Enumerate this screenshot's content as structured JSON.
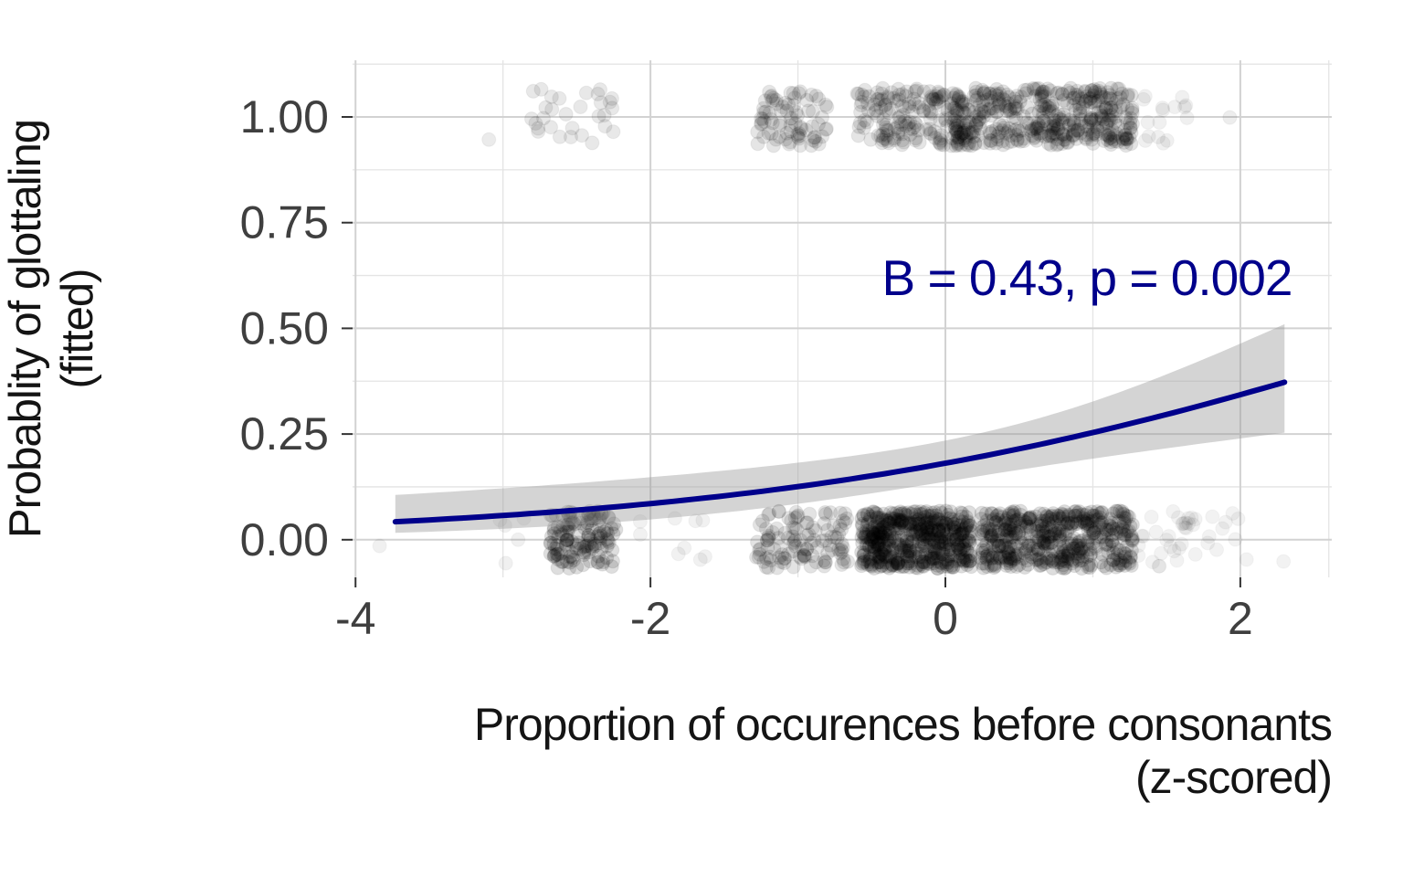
{
  "figure": {
    "background": "#ffffff"
  },
  "axes": {
    "y_title_line1": "Probablity of glottaling",
    "y_title_line2": "(fitted)",
    "x_title_line1": "Proportion of occurences before consonants",
    "x_title_line2": "(z-scored)"
  },
  "chart_data": {
    "type": "scatter",
    "title": "",
    "xlabel": "Proportion of occurences before consonants (z-scored)",
    "ylabel": "Probablity of glottaling (fitted)",
    "xlim": [
      -4.02,
      2.62
    ],
    "ylim": [
      -0.089,
      1.134
    ],
    "grid": {
      "on": true,
      "x_major": [
        -4,
        -2,
        0,
        2
      ],
      "x_minor": [
        -3,
        -1,
        1,
        2.6
      ],
      "y_major": [
        0,
        0.25,
        0.5,
        0.75,
        1.0
      ],
      "y_minor": [
        0.125,
        0.375,
        0.625,
        0.875,
        1.125
      ],
      "major_color": "#d2d2d2",
      "minor_color": "#e4e4e4"
    },
    "x_ticks": [
      {
        "value": -4,
        "label": "-4"
      },
      {
        "value": -2,
        "label": "-2"
      },
      {
        "value": 0,
        "label": "0"
      },
      {
        "value": 2,
        "label": "2"
      }
    ],
    "y_ticks": [
      {
        "value": 0.0,
        "label": "0.00"
      },
      {
        "value": 0.25,
        "label": "0.25"
      },
      {
        "value": 0.5,
        "label": "0.50"
      },
      {
        "value": 0.75,
        "label": "0.75"
      },
      {
        "value": 1.0,
        "label": "1.00"
      }
    ],
    "tick_color": "#333333",
    "tick_label_color": "#3f3f3f",
    "annotation": {
      "text": "B = 0.43, p = 0.002",
      "x": 0.96,
      "y": 0.62,
      "color": "#00008b"
    },
    "fit": {
      "model": "logistic",
      "B": 0.43,
      "p_value": 0.002,
      "intercept": -1.51,
      "slope": 0.43,
      "x_range": [
        -3.73,
        2.3
      ],
      "line_color": "#00008b",
      "line_width": 6,
      "ribbon_color": "#999999",
      "ribbon_opacity": 0.42,
      "ribbon_se": {
        "base": 0.32,
        "slope": 0.23,
        "x_center": 0.3
      }
    },
    "points": {
      "color": "#000000",
      "radius": 7.5,
      "jitter_height": 0.068,
      "clusters": [
        {
          "band": 1,
          "x_min": -3.11,
          "x_max": -3.07,
          "n": 1,
          "alpha": 0.08
        },
        {
          "band": 1,
          "x_min": -2.82,
          "x_max": -2.25,
          "n": 30,
          "alpha": 0.09
        },
        {
          "band": 1,
          "x_min": -1.28,
          "x_max": -0.8,
          "n": 80,
          "alpha": 0.1
        },
        {
          "band": 1,
          "x_min": -0.6,
          "x_max": 0.12,
          "n": 170,
          "alpha": 0.1
        },
        {
          "band": 1,
          "x_min": 0.05,
          "x_max": 1.27,
          "n": 430,
          "alpha": 0.11
        },
        {
          "band": 1,
          "x_min": 1.3,
          "x_max": 1.64,
          "n": 16,
          "alpha": 0.06
        },
        {
          "band": 1,
          "x_min": 1.92,
          "x_max": 1.95,
          "n": 1,
          "alpha": 0.07
        },
        {
          "band": 0,
          "x_min": -3.84,
          "x_max": -3.81,
          "n": 1,
          "alpha": 0.06
        },
        {
          "band": 0,
          "x_min": -3.03,
          "x_max": -2.83,
          "n": 5,
          "alpha": 0.06
        },
        {
          "band": 0,
          "x_min": -2.68,
          "x_max": -2.23,
          "n": 135,
          "alpha": 0.13
        },
        {
          "band": 0,
          "x_min": -2.1,
          "x_max": -1.6,
          "n": 9,
          "alpha": 0.055
        },
        {
          "band": 0,
          "x_min": -1.29,
          "x_max": -0.66,
          "n": 115,
          "alpha": 0.11
        },
        {
          "band": 0,
          "x_min": -0.57,
          "x_max": 0.18,
          "n": 520,
          "alpha": 0.13
        },
        {
          "band": 0,
          "x_min": 0.24,
          "x_max": 1.27,
          "n": 470,
          "alpha": 0.13
        },
        {
          "band": 0,
          "x_min": 1.3,
          "x_max": 1.7,
          "n": 30,
          "alpha": 0.05
        },
        {
          "band": 0,
          "x_min": 1.72,
          "x_max": 2.05,
          "n": 10,
          "alpha": 0.05
        },
        {
          "band": 0,
          "x_min": 2.28,
          "x_max": 2.31,
          "n": 1,
          "alpha": 0.05
        }
      ]
    }
  }
}
